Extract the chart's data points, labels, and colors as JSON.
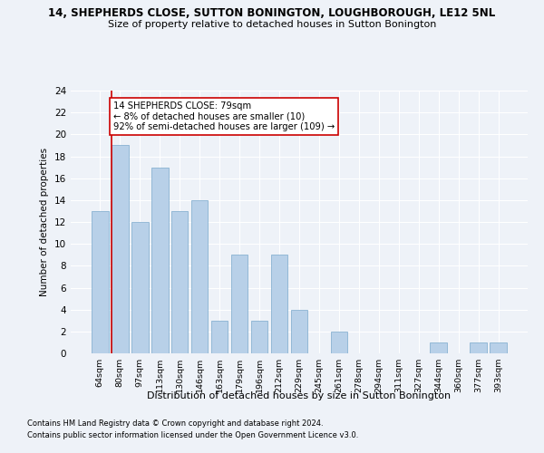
{
  "title1": "14, SHEPHERDS CLOSE, SUTTON BONINGTON, LOUGHBOROUGH, LE12 5NL",
  "title2": "Size of property relative to detached houses in Sutton Bonington",
  "xlabel": "Distribution of detached houses by size in Sutton Bonington",
  "ylabel": "Number of detached properties",
  "categories": [
    "64sqm",
    "80sqm",
    "97sqm",
    "113sqm",
    "130sqm",
    "146sqm",
    "163sqm",
    "179sqm",
    "196sqm",
    "212sqm",
    "229sqm",
    "245sqm",
    "261sqm",
    "278sqm",
    "294sqm",
    "311sqm",
    "327sqm",
    "344sqm",
    "360sqm",
    "377sqm",
    "393sqm"
  ],
  "values": [
    13,
    19,
    12,
    17,
    13,
    14,
    3,
    9,
    3,
    9,
    4,
    0,
    2,
    0,
    0,
    0,
    0,
    1,
    0,
    1,
    1
  ],
  "bar_color": "#b8d0e8",
  "bar_edge_color": "#7aa8cc",
  "vline_color": "#cc0000",
  "annotation_text": "14 SHEPHERDS CLOSE: 79sqm\n← 8% of detached houses are smaller (10)\n92% of semi-detached houses are larger (109) →",
  "annotation_box_color": "#ffffff",
  "annotation_box_edge": "#cc0000",
  "ylim": [
    0,
    24
  ],
  "yticks": [
    0,
    2,
    4,
    6,
    8,
    10,
    12,
    14,
    16,
    18,
    20,
    22,
    24
  ],
  "footer1": "Contains HM Land Registry data © Crown copyright and database right 2024.",
  "footer2": "Contains public sector information licensed under the Open Government Licence v3.0.",
  "bg_color": "#eef2f8",
  "plot_bg_color": "#eef2f8",
  "grid_color": "#ffffff"
}
